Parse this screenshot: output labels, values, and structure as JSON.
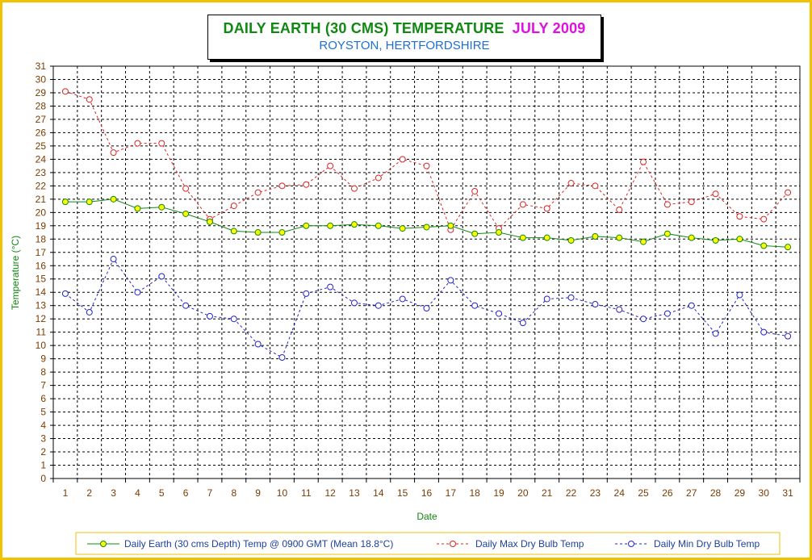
{
  "chart_data": {
    "type": "line",
    "title": "DAILY EARTH (30 CMS) TEMPERATURE",
    "title_month": "JULY 2009",
    "subtitle": "ROYSTON, HERTFORDSHIRE",
    "xlabel": "Date",
    "ylabel": "Temperature (°C)",
    "ylim": [
      0,
      31
    ],
    "grid": true,
    "legend_position": "bottom",
    "x": [
      1,
      2,
      3,
      4,
      5,
      6,
      7,
      8,
      9,
      10,
      11,
      12,
      13,
      14,
      15,
      16,
      17,
      18,
      19,
      20,
      21,
      22,
      23,
      24,
      25,
      26,
      27,
      28,
      29,
      30,
      31
    ],
    "series": [
      {
        "name": "Daily Earth (30 cms Depth) Temp @ 0900 GMT (Mean 18.8°C)",
        "color": "#118811",
        "marker_fill": "#ffff00",
        "style": "solid",
        "values": [
          20.8,
          20.8,
          21.0,
          20.3,
          20.4,
          19.9,
          19.3,
          18.6,
          18.5,
          18.5,
          19.0,
          19.0,
          19.1,
          19.0,
          18.8,
          18.9,
          19.0,
          18.4,
          18.5,
          18.1,
          18.1,
          17.9,
          18.2,
          18.1,
          17.8,
          18.4,
          18.1,
          17.9,
          18.0,
          17.5,
          17.4
        ]
      },
      {
        "name": "Daily Max Dry Bulb Temp",
        "color": "#dd2222",
        "marker_fill": "#ffffff",
        "style": "dashed",
        "values": [
          29.1,
          28.5,
          24.5,
          25.2,
          25.2,
          21.8,
          19.5,
          20.5,
          21.5,
          22.0,
          22.1,
          23.5,
          21.8,
          22.6,
          24.0,
          23.5,
          18.7,
          21.6,
          18.8,
          20.6,
          20.3,
          22.2,
          22.0,
          20.2,
          23.8,
          20.6,
          20.8,
          21.4,
          19.7,
          19.5,
          21.5
        ]
      },
      {
        "name": "Daily Min Dry Bulb Temp",
        "color": "#2222cc",
        "marker_fill": "#ffffff",
        "style": "dashed",
        "values": [
          13.9,
          12.5,
          16.5,
          14.0,
          15.2,
          13.0,
          12.2,
          12.0,
          10.1,
          9.1,
          13.9,
          14.4,
          13.2,
          13.0,
          13.5,
          12.8,
          14.9,
          13.0,
          12.4,
          11.7,
          13.5,
          13.6,
          13.1,
          12.7,
          12.0,
          12.4,
          13.0,
          10.9,
          13.8,
          11.0,
          10.7
        ]
      }
    ]
  }
}
